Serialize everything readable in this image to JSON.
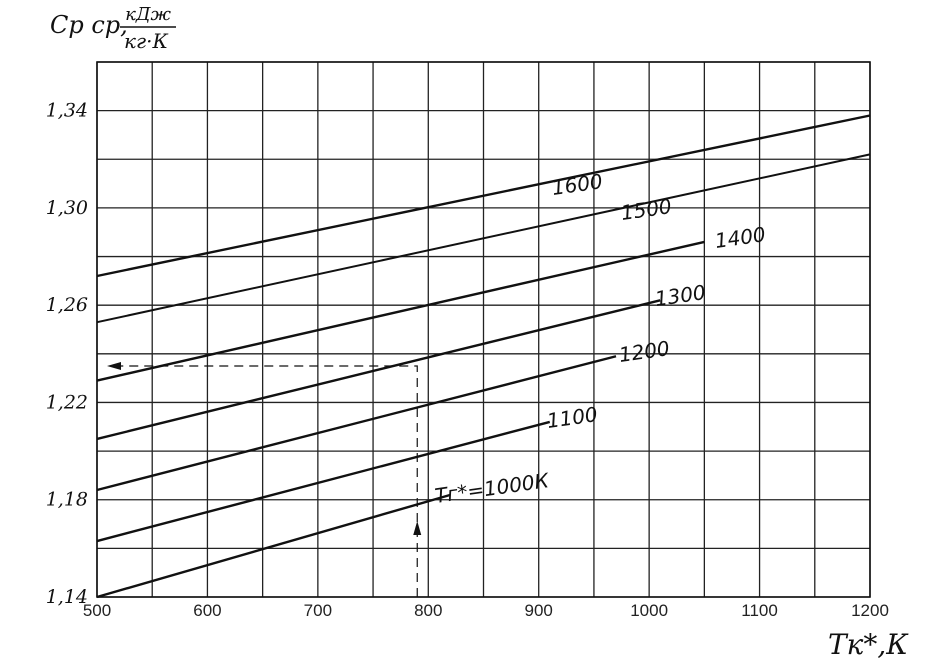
{
  "chart_data": {
    "type": "line",
    "y_axis": {
      "label": "Cр ср,",
      "unit_numerator": "кДж",
      "unit_denominator": "кг·К",
      "min": 1.14,
      "max": 1.36,
      "ticks": [
        1.14,
        1.18,
        1.22,
        1.26,
        1.3,
        1.34
      ],
      "tick_labels": [
        "1,14",
        "1,18",
        "1,22",
        "1,26",
        "1,30",
        "1,34"
      ]
    },
    "x_axis": {
      "label": "Tк*,К",
      "min": 500,
      "max": 1200,
      "ticks": [
        500,
        600,
        700,
        800,
        900,
        1000,
        1100,
        1200
      ],
      "tick_labels": [
        "500",
        "600",
        "700",
        "800",
        "900",
        "1000",
        "1100",
        "1200"
      ]
    },
    "grid": true,
    "series": [
      {
        "name": "Tг*=1000К",
        "label_text": "Tг*=1000К",
        "x": [
          500,
          820
        ],
        "y": [
          1.14,
          1.182
        ]
      },
      {
        "name": "1100",
        "label_text": "1100",
        "x": [
          500,
          910
        ],
        "y": [
          1.163,
          1.212
        ]
      },
      {
        "name": "1200",
        "label_text": "1200",
        "x": [
          500,
          970
        ],
        "y": [
          1.184,
          1.239
        ]
      },
      {
        "name": "1300",
        "label_text": "1300",
        "x": [
          500,
          1010
        ],
        "y": [
          1.205,
          1.262
        ]
      },
      {
        "name": "1400",
        "label_text": "1400",
        "x": [
          500,
          1050
        ],
        "y": [
          1.229,
          1.286
        ]
      },
      {
        "name": "1500",
        "label_text": "1500",
        "x": [
          500,
          1200
        ],
        "y": [
          1.253,
          1.322
        ]
      },
      {
        "name": "1600",
        "label_text": "1600",
        "x": [
          500,
          1200
        ],
        "y": [
          1.272,
          1.338
        ]
      }
    ],
    "guide": {
      "x": 790,
      "y": 1.235
    }
  }
}
